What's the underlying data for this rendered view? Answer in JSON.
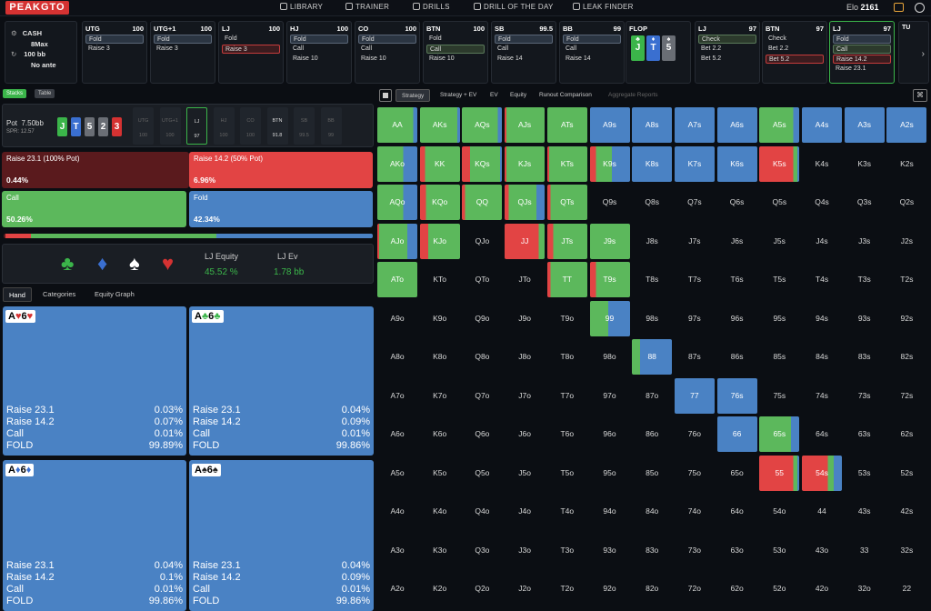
{
  "app": {
    "logo": "PEAKGTO"
  },
  "nav": {
    "library": "LIBRARY",
    "trainer": "TRAINER",
    "drills": "DRILLS",
    "drill_of_the_day": "DRILL OF THE DAY",
    "leak_finder": "LEAK FINDER"
  },
  "user": {
    "elo_label": "Elo",
    "elo_value": "2161"
  },
  "settings": {
    "game": "CASH",
    "max": "8Max",
    "stack": "100 bb",
    "ante": "No ante"
  },
  "positions": [
    {
      "name": "UTG",
      "stack": "100",
      "actions": [
        "Fold",
        "Raise 3"
      ],
      "selected": 0,
      "style": "sel"
    },
    {
      "name": "UTG+1",
      "stack": "100",
      "actions": [
        "Fold",
        "Raise 3"
      ],
      "selected": 0,
      "style": "sel"
    },
    {
      "name": "LJ",
      "stack": "100",
      "actions": [
        "Fold",
        "Raise 3"
      ],
      "selected": 1,
      "style": "selr"
    },
    {
      "name": "HJ",
      "stack": "100",
      "actions": [
        "Fold",
        "Call",
        "Raise 10"
      ],
      "selected": 0,
      "style": "sel"
    },
    {
      "name": "CO",
      "stack": "100",
      "actions": [
        "Fold",
        "Call",
        "Raise 10"
      ],
      "selected": 0,
      "style": "sel"
    },
    {
      "name": "BTN",
      "stack": "100",
      "actions": [
        "Fold",
        "Call",
        "Raise 10"
      ],
      "selected": 1,
      "style": "selg"
    },
    {
      "name": "SB",
      "stack": "99.5",
      "actions": [
        "Fold",
        "Call",
        "Raise 14"
      ],
      "selected": 0,
      "style": "sel"
    },
    {
      "name": "BB",
      "stack": "99",
      "actions": [
        "Fold",
        "Call",
        "Raise 14"
      ],
      "selected": 0,
      "style": "sel"
    }
  ],
  "flop": {
    "label": "FLOP",
    "cards": [
      {
        "rank": "J",
        "suit": "♣",
        "color": "#3bb54a"
      },
      {
        "rank": "T",
        "suit": "♦",
        "color": "#3a6fd0"
      },
      {
        "rank": "5",
        "suit": "♠",
        "color": "#6a6e75"
      }
    ]
  },
  "street_cards": [
    {
      "name": "LJ",
      "stack": "97",
      "actions": [
        "Check",
        "Bet 2.2",
        "Bet 5.2"
      ],
      "selected": 0,
      "style": "selg"
    },
    {
      "name": "BTN",
      "stack": "97",
      "actions": [
        "Check",
        "Bet 2.2",
        "Bet 5.2"
      ],
      "selected": 2,
      "style": "selr"
    },
    {
      "name": "LJ",
      "stack": "97",
      "actions": [
        "Fold",
        "Call",
        "Raise 14.2",
        "Raise 23.1"
      ],
      "selected": -1,
      "style": "sel"
    }
  ],
  "next_card": {
    "label": "TU"
  },
  "left_tabs": {
    "stacks": "Stacks",
    "table": "Table"
  },
  "pot": {
    "label": "Pot",
    "value": "7.50bb",
    "spr": "SPR: 12.57"
  },
  "board": [
    {
      "r": "J",
      "c": "#3bb54a"
    },
    {
      "r": "T",
      "c": "#3a6fd0"
    },
    {
      "r": "5",
      "c": "#6a6e75"
    },
    {
      "r": "2",
      "c": "#6a6e75"
    },
    {
      "r": "3",
      "c": "#d53232"
    }
  ],
  "seats": [
    {
      "n": "UTG",
      "v": "100"
    },
    {
      "n": "UTG+1",
      "v": "100"
    },
    {
      "n": "LJ",
      "v": "97"
    },
    {
      "n": "HJ",
      "v": "100"
    },
    {
      "n": "CO",
      "v": "100"
    },
    {
      "n": "BTN",
      "v": "91.8"
    },
    {
      "n": "SB",
      "v": "99.5"
    },
    {
      "n": "BB",
      "v": "99"
    }
  ],
  "strategy": [
    {
      "label": "Raise 23.1 (100% Pot)",
      "pct": "0.44%",
      "color": "#5a1a1d"
    },
    {
      "label": "Raise 14.2 (50% Pot)",
      "pct": "6.96%",
      "color": "#e24444"
    },
    {
      "label": "Call",
      "pct": "50.26%",
      "color": "#5cb85c"
    },
    {
      "label": "Fold",
      "pct": "42.34%",
      "color": "#4a82c4"
    }
  ],
  "equity": {
    "eq_label": "LJ Equity",
    "eq_value": "45.52 %",
    "ev_label": "LJ Ev",
    "ev_value": "1.78 bb"
  },
  "hand_tabs": {
    "hand": "Hand",
    "categories": "Categories",
    "equity_graph": "Equity Graph"
  },
  "hands": [
    {
      "combo": "A♥6♥",
      "suitcolor": "#d53232",
      "rows": [
        [
          "Raise 23.1",
          "0.03%"
        ],
        [
          "Raise 14.2",
          "0.07%"
        ],
        [
          "Call",
          "0.01%"
        ],
        [
          "FOLD",
          "99.89%"
        ]
      ]
    },
    {
      "combo": "A♣6♣",
      "suitcolor": "#3bb54a",
      "rows": [
        [
          "Raise 23.1",
          "0.04%"
        ],
        [
          "Raise 14.2",
          "0.09%"
        ],
        [
          "Call",
          "0.01%"
        ],
        [
          "FOLD",
          "99.86%"
        ]
      ]
    },
    {
      "combo": "A♦6♦",
      "suitcolor": "#3a6fd0",
      "rows": [
        [
          "Raise 23.1",
          "0.04%"
        ],
        [
          "Raise 14.2",
          "0.1%"
        ],
        [
          "Call",
          "0.01%"
        ],
        [
          "FOLD",
          "99.86%"
        ]
      ]
    },
    {
      "combo": "A♠6♠",
      "suitcolor": "#222",
      "rows": [
        [
          "Raise 23.1",
          "0.04%"
        ],
        [
          "Raise 14.2",
          "0.09%"
        ],
        [
          "Call",
          "0.01%"
        ],
        [
          "FOLD",
          "99.86%"
        ]
      ]
    }
  ],
  "grid_tabs": [
    "Strategy",
    "Strategy + EV",
    "EV",
    "Equity",
    "Runout Comparison",
    "Aggregate Reports"
  ],
  "grid": {
    "ranks": [
      "A",
      "K",
      "Q",
      "J",
      "T",
      "9",
      "8",
      "7",
      "6",
      "5",
      "4",
      "3",
      "2"
    ],
    "colored": {
      "AA": [
        0.9,
        0,
        0.1
      ],
      "AKs": [
        0.93,
        0,
        0.07
      ],
      "AQs": [
        0.9,
        0,
        0.1
      ],
      "AJs": [
        0.95,
        0.05,
        0
      ],
      "ATs": [
        1,
        0,
        0
      ],
      "A9s": [
        0,
        0,
        1
      ],
      "A8s": [
        0,
        0,
        1
      ],
      "A7s": [
        0,
        0,
        1
      ],
      "A6s": [
        0,
        0,
        1
      ],
      "A5s": [
        0.85,
        0,
        0.15
      ],
      "A4s": [
        0,
        0,
        1
      ],
      "A3s": [
        0,
        0,
        1
      ],
      "A2s": [
        0,
        0,
        1
      ],
      "AKo": [
        0.65,
        0,
        0.35
      ],
      "KK": [
        0.88,
        0.12,
        0
      ],
      "KQs": [
        0.75,
        0.2,
        0.05
      ],
      "KJs": [
        0.95,
        0.05,
        0
      ],
      "KTs": [
        0.95,
        0.05,
        0
      ],
      "K9s": [
        0.4,
        0.15,
        0.45
      ],
      "K8s": [
        0,
        0,
        1
      ],
      "K7s": [
        0,
        0,
        1
      ],
      "K6s": [
        0,
        0,
        1
      ],
      "K5s": [
        0.1,
        0.85,
        0.05
      ],
      "AQo": [
        0.65,
        0,
        0.35
      ],
      "KQo": [
        0.85,
        0.15,
        0
      ],
      "QQ": [
        0.92,
        0.08,
        0
      ],
      "QJs": [
        0.7,
        0.1,
        0.2
      ],
      "QTs": [
        0.92,
        0.08,
        0
      ],
      "Q9s": [
        0,
        0,
        0
      ],
      "AJo": [
        0.7,
        0.05,
        0.25
      ],
      "KJo": [
        0.8,
        0.2,
        0
      ],
      "JJ": [
        0.15,
        0.85,
        0
      ],
      "JTs": [
        0.85,
        0.15,
        0
      ],
      "J9s": [
        1,
        0,
        0
      ],
      "ATo": [
        1,
        0,
        0
      ],
      "TT": [
        0.92,
        0.08,
        0
      ],
      "T9s": [
        0.85,
        0.15,
        0
      ],
      "99": [
        0.45,
        0,
        0.55
      ],
      "88": [
        0.2,
        0,
        0.8
      ],
      "77": [
        0,
        0,
        1
      ],
      "76s": [
        0,
        0,
        1
      ],
      "66": [
        0,
        0,
        1
      ],
      "65s": [
        0.8,
        0,
        0.2
      ],
      "55": [
        0.1,
        0.85,
        0.05
      ],
      "54s": [
        0.15,
        0.65,
        0.2
      ]
    }
  }
}
